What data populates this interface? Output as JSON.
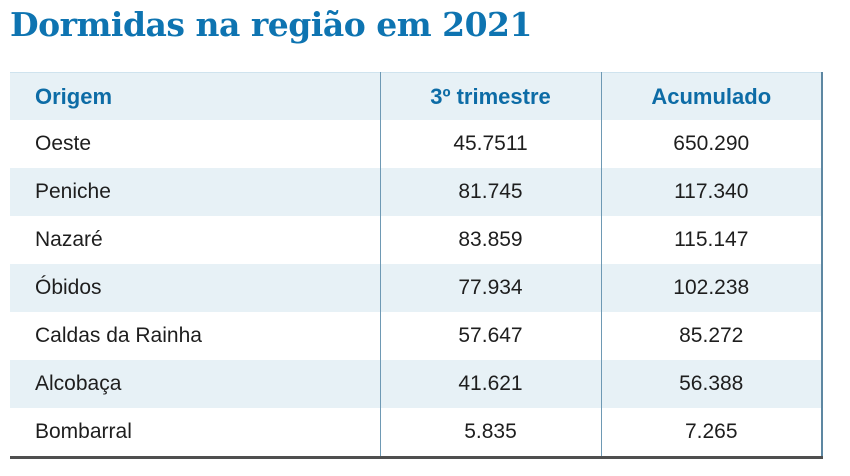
{
  "chart_data": {
    "type": "table",
    "title": "Dormidas na região em 2021",
    "columns": [
      "Origem",
      "3º trimestre",
      "Acumulado"
    ],
    "rows": [
      [
        "Oeste",
        "45.7511",
        "650.290"
      ],
      [
        "Peniche",
        "81.745",
        "117.340"
      ],
      [
        "Nazaré",
        "83.859",
        "115.147"
      ],
      [
        "Óbidos",
        "77.934",
        "102.238"
      ],
      [
        "Caldas da Rainha",
        "57.647",
        "85.272"
      ],
      [
        "Alcobaça",
        "41.621",
        "56.388"
      ],
      [
        "Bombarral",
        "5.835",
        "7.265"
      ]
    ]
  },
  "colors": {
    "title_blue": "#0e74b1",
    "header_text_blue": "#0d6ca6",
    "row_tint": "#e7f1f6",
    "divider_blue": "#6e99b4",
    "right_border": "#5d87a2",
    "bottom_border": "#4f4f4f"
  }
}
